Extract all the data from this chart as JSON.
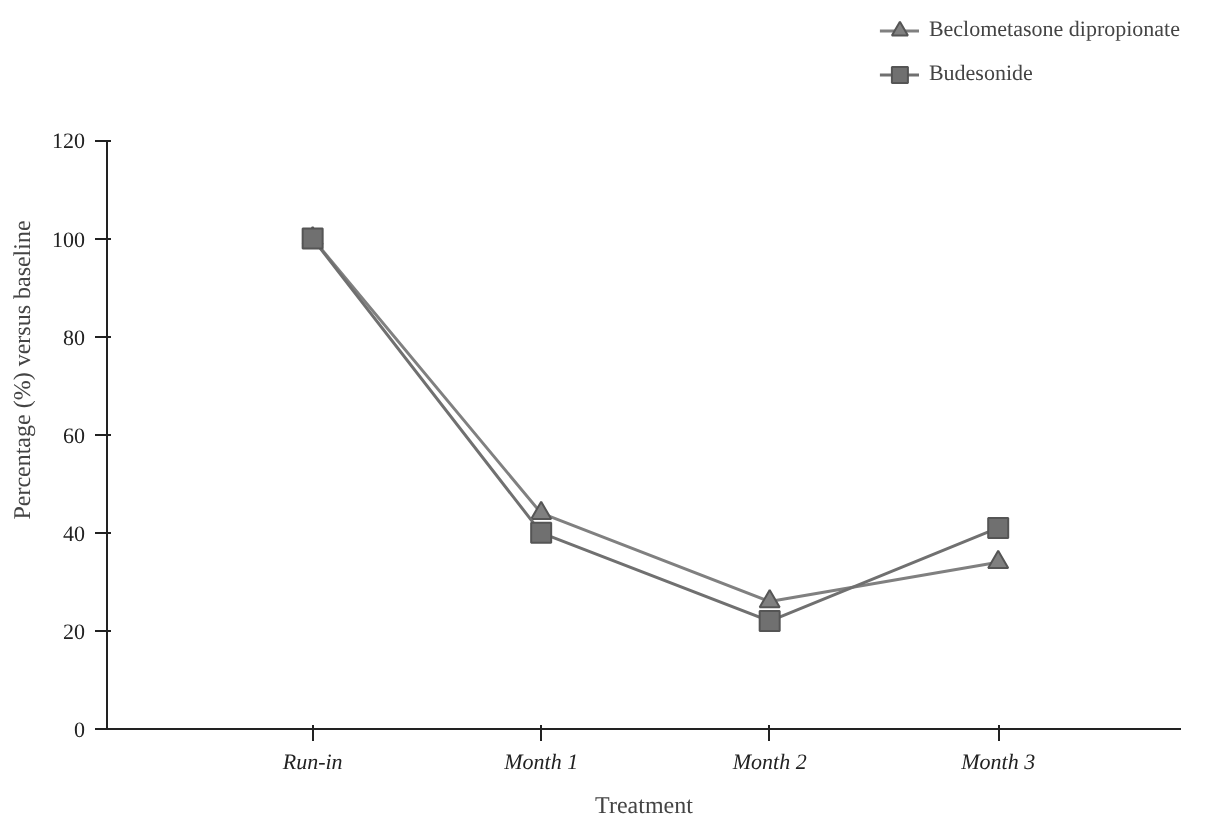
{
  "chart_data": {
    "type": "line",
    "xlabel": "Treatment",
    "ylabel": "Percentage (%) versus baseline",
    "categories": [
      "Run-in",
      "Month 1",
      "Month 2",
      "Month 3"
    ],
    "series": [
      {
        "name": "Beclometasone dipropionate",
        "color": "#808080",
        "marker": "triangle",
        "values": [
          100,
          44,
          26,
          34
        ]
      },
      {
        "name": "Budesonide",
        "color": "#707070",
        "marker": "square",
        "values": [
          100,
          40,
          22,
          41
        ]
      }
    ],
    "ylim": [
      0,
      120
    ],
    "yticks": [
      0,
      20,
      40,
      60,
      80,
      100,
      120
    ],
    "grid": false,
    "legend": "top right",
    "line_style": "solid"
  }
}
